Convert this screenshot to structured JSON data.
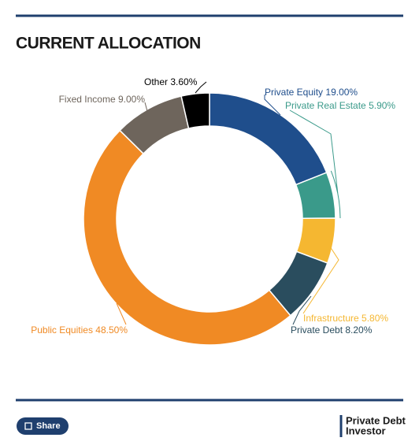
{
  "chart_data": {
    "type": "donut",
    "title": "CURRENT ALLOCATION",
    "categories": [
      "Private Equity",
      "Private Real Estate",
      "Infrastructure",
      "Private Debt",
      "Public Equities",
      "Fixed Income",
      "Other"
    ],
    "values": [
      19.0,
      5.9,
      5.8,
      8.2,
      48.5,
      9.0,
      3.6
    ],
    "value_labels": [
      "19.00%",
      "5.90%",
      "5.80%",
      "8.20%",
      "48.50%",
      "9.00%",
      "3.60%"
    ],
    "colors": [
      "#1f4e8c",
      "#3a9a8a",
      "#f5b731",
      "#2a4d5e",
      "#f08a24",
      "#6e655c",
      "#000000"
    ],
    "label_colors": [
      "#1f4e8c",
      "#3a9a8a",
      "#f5b731",
      "#2a4d5e",
      "#f08a24",
      "#6e655c",
      "#000000"
    ]
  },
  "footer": {
    "share": "Share",
    "brand": [
      "Private Debt",
      "Investor"
    ]
  }
}
